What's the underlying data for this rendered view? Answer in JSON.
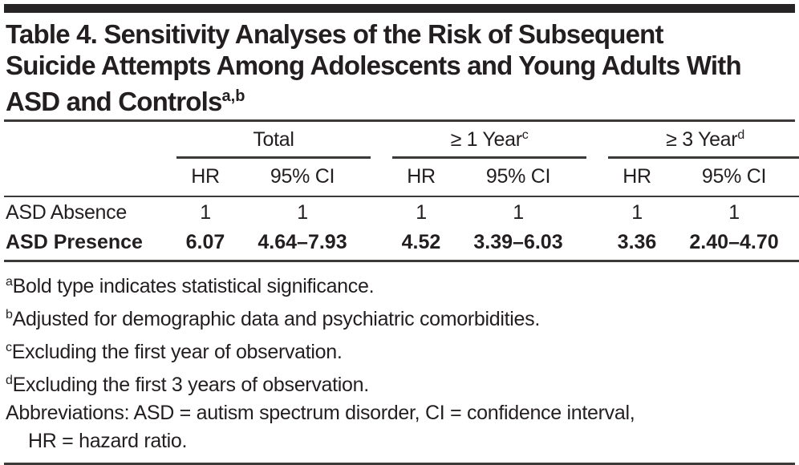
{
  "colors": {
    "text": "#231f20",
    "rule": "#3b3a39",
    "top_bar": "#262424",
    "background": "#ffffff"
  },
  "title": {
    "line1": "Table 4. Sensitivity Analyses of the Risk of Subsequent",
    "line2": "Suicide Attempts Among Adolescents and Young Adults With",
    "line3_main": "ASD and Controls",
    "line3_sup": "a,b"
  },
  "table": {
    "groups": [
      {
        "label": "Total",
        "sup": ""
      },
      {
        "label": "≥ 1 Year",
        "sup": "c"
      },
      {
        "label": "≥ 3 Year",
        "sup": "d"
      }
    ],
    "subheaders": [
      "HR",
      "95% CI"
    ],
    "rows": [
      {
        "label": "ASD Absence",
        "values": [
          "1",
          "1",
          "1",
          "1",
          "1",
          "1"
        ],
        "bold": false
      },
      {
        "label": "ASD Presence",
        "values": [
          "6.07",
          "4.64–7.93",
          "4.52",
          "3.39–6.03",
          "3.36",
          "2.40–4.70"
        ],
        "bold": true
      }
    ]
  },
  "footnotes": [
    {
      "sup": "a",
      "text": "Bold type indicates statistical significance."
    },
    {
      "sup": "b",
      "text": "Adjusted for demographic data and psychiatric comorbidities."
    },
    {
      "sup": "c",
      "text": "Excluding the first year of observation."
    },
    {
      "sup": "d",
      "text": "Excluding the first 3 years of observation."
    },
    {
      "sup": "",
      "text": "Abbreviations: ASD = autism spectrum disorder, CI = confidence interval,"
    },
    {
      "sup": "",
      "text": "HR = hazard ratio."
    }
  ]
}
